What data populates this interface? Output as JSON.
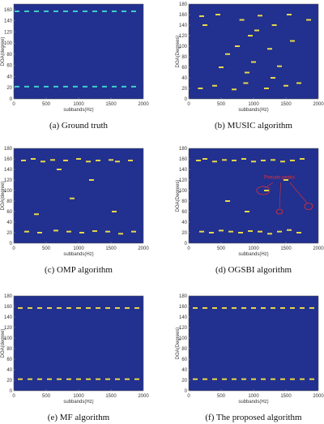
{
  "chart_data": [
    {
      "type": "scatter",
      "caption": "(a)  Ground truth",
      "xlabel": "subbands(Hz)",
      "ylabel": "DOA(degree)",
      "background": "#22308f",
      "color": "#3fd0c8",
      "x": [
        50,
        200,
        350,
        500,
        650,
        800,
        950,
        1100,
        1250,
        1400,
        1550,
        1700,
        1850,
        50,
        200,
        350,
        500,
        650,
        800,
        950,
        1100,
        1250,
        1400,
        1550,
        1700,
        1850
      ],
      "y": [
        22,
        22,
        22,
        22,
        22,
        22,
        22,
        22,
        22,
        22,
        22,
        22,
        22,
        157,
        157,
        157,
        157,
        157,
        157,
        157,
        157,
        157,
        157,
        157,
        157,
        157
      ],
      "xlim": [
        0,
        2000
      ],
      "xticks": [
        0,
        500,
        1000,
        1500,
        2000
      ],
      "ylim": [
        0,
        170
      ],
      "yticks": [
        0,
        20,
        40,
        60,
        80,
        100,
        120,
        140,
        160
      ]
    },
    {
      "type": "scatter",
      "caption": "(b)  MUSIC algorithm",
      "xlabel": "subbands(Hz)",
      "ylabel": "DOA(Degrees)",
      "background": "#22308f",
      "color": "#e8d84a",
      "x": [
        180,
        200,
        250,
        400,
        450,
        500,
        700,
        750,
        820,
        880,
        950,
        1000,
        1100,
        1200,
        1250,
        1320,
        1400,
        1500,
        1550,
        1600,
        1700,
        1850,
        900,
        1050,
        1300,
        600
      ],
      "y": [
        20,
        157,
        140,
        25,
        160,
        60,
        18,
        100,
        150,
        30,
        120,
        70,
        158,
        20,
        95,
        140,
        62,
        25,
        160,
        110,
        30,
        150,
        50,
        130,
        40,
        85
      ],
      "xlim": [
        0,
        2000
      ],
      "xticks": [
        0,
        500,
        1000,
        1500,
        2000
      ],
      "ylim": [
        0,
        180
      ],
      "yticks": [
        0,
        20,
        40,
        60,
        80,
        100,
        120,
        140,
        160,
        180
      ]
    },
    {
      "type": "scatter",
      "caption": "(c)  OMP algorithm",
      "xlabel": "subbands(Hz)",
      "ylabel": "DOA(degree)",
      "background": "#22308f",
      "color": "#e8d84a",
      "x": [
        150,
        300,
        450,
        600,
        800,
        1000,
        1150,
        1300,
        1500,
        1600,
        1800,
        200,
        400,
        650,
        850,
        1050,
        1250,
        1450,
        1650,
        1850,
        350,
        900,
        1200,
        1550,
        700
      ],
      "y": [
        157,
        160,
        155,
        158,
        157,
        160,
        155,
        157,
        158,
        155,
        157,
        22,
        20,
        24,
        22,
        20,
        23,
        22,
        18,
        22,
        55,
        85,
        120,
        60,
        140
      ],
      "xlim": [
        0,
        2000
      ],
      "xticks": [
        0,
        500,
        1000,
        1500,
        2000
      ],
      "ylim": [
        0,
        180
      ],
      "yticks": [
        0,
        20,
        40,
        60,
        80,
        100,
        120,
        140,
        160,
        180
      ]
    },
    {
      "type": "scatter",
      "caption": "(d)  OGSBI algorithm",
      "xlabel": "subbands(Hz)",
      "ylabel": "DOA(Degrees)",
      "background": "#22308f",
      "color": "#e8d84a",
      "annotation": "Pseudo peaks",
      "x": [
        150,
        250,
        400,
        550,
        700,
        850,
        1000,
        1150,
        1300,
        1450,
        1600,
        1750,
        200,
        350,
        500,
        650,
        800,
        950,
        1100,
        1250,
        1400,
        1550,
        1700,
        1200,
        600,
        1500,
        900
      ],
      "y": [
        157,
        160,
        155,
        158,
        157,
        160,
        155,
        157,
        158,
        155,
        157,
        160,
        22,
        20,
        24,
        22,
        20,
        23,
        22,
        18,
        22,
        25,
        20,
        100,
        80,
        120,
        60
      ],
      "xlim": [
        0,
        2000
      ],
      "xticks": [
        0,
        500,
        1000,
        1500,
        2000
      ],
      "ylim": [
        0,
        180
      ],
      "yticks": [
        0,
        20,
        40,
        60,
        80,
        100,
        120,
        140,
        160,
        180
      ]
    },
    {
      "type": "scatter",
      "caption": "(e)  MF algorithm",
      "xlabel": "subbands(Hz)",
      "ylabel": "DOA(degree)",
      "background": "#22308f",
      "color": "#e8d84a",
      "x": [
        100,
        250,
        400,
        550,
        700,
        850,
        1000,
        1150,
        1300,
        1450,
        1600,
        1750,
        1900,
        100,
        250,
        400,
        550,
        700,
        850,
        1000,
        1150,
        1300,
        1450,
        1600,
        1750,
        1900
      ],
      "y": [
        22,
        22,
        22,
        22,
        22,
        22,
        22,
        22,
        22,
        22,
        22,
        22,
        22,
        157,
        157,
        157,
        157,
        157,
        157,
        157,
        157,
        157,
        157,
        157,
        157,
        157
      ],
      "xlim": [
        0,
        2000
      ],
      "xticks": [
        0,
        500,
        1000,
        1500,
        2000
      ],
      "ylim": [
        0,
        180
      ],
      "yticks": [
        0,
        20,
        40,
        60,
        80,
        100,
        120,
        140,
        160,
        180
      ]
    },
    {
      "type": "scatter",
      "caption": "(f)  The proposed algorithm",
      "xlabel": "subbands(Hz)",
      "ylabel": "DOA(Degrees)",
      "background": "#22308f",
      "color": "#e8d84a",
      "x": [
        100,
        250,
        400,
        550,
        700,
        850,
        1000,
        1150,
        1300,
        1450,
        1600,
        1750,
        1900,
        100,
        250,
        400,
        550,
        700,
        850,
        1000,
        1150,
        1300,
        1450,
        1600,
        1750,
        1900
      ],
      "y": [
        22,
        22,
        22,
        22,
        22,
        22,
        22,
        22,
        22,
        22,
        22,
        22,
        22,
        157,
        157,
        157,
        157,
        157,
        157,
        157,
        157,
        157,
        157,
        157,
        157,
        157
      ],
      "xlim": [
        0,
        2000
      ],
      "xticks": [
        0,
        500,
        1000,
        1500,
        2000
      ],
      "ylim": [
        0,
        180
      ],
      "yticks": [
        0,
        20,
        40,
        60,
        80,
        100,
        120,
        140,
        160,
        180
      ]
    }
  ]
}
